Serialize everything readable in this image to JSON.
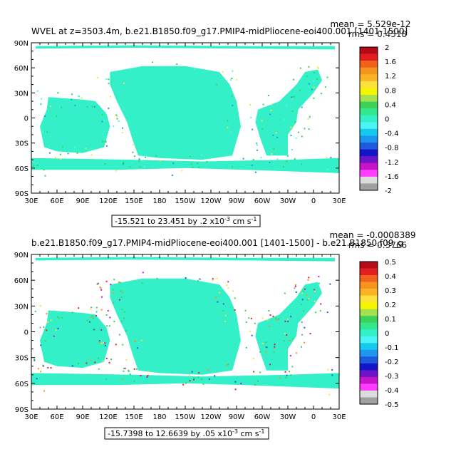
{
  "panels": [
    {
      "title": "WVEL at z=3503.4m, b.e21.B1850.f09_g17.PMIP4-midPliocene-eoi400.001 [1401-1500]",
      "stat_top": "mean = 5.529e-12",
      "stat_bottom": "rms = 0.4518",
      "range_text": "-15.521 to 23.451 by .2 x10",
      "range_exp": "-3",
      "range_unit": " cm s",
      "range_unit_exp": "-1",
      "colorbar_labels": [
        "2",
        "1.6",
        "1.2",
        "0.8",
        "0.4",
        "0",
        "-0.4",
        "-0.8",
        "-1.2",
        "-1.6",
        "-2"
      ],
      "colorbar_colors": [
        "#b40a19",
        "#e21e1e",
        "#f0621c",
        "#f7941d",
        "#fbb426",
        "#fde13c",
        "#f5f500",
        "#a5e04e",
        "#3cd25a",
        "#33e88c",
        "#33f0c8",
        "#4cf5f5",
        "#14c8f0",
        "#1e96f0",
        "#1e5adc",
        "#1414c8",
        "#6e14c8",
        "#c814c8",
        "#ff3cff",
        "#dcdcdc",
        "#a0a0a0"
      ]
    },
    {
      "title": "b.e21.B1850.f09_g17.PMIP4-midPliocene-eoi400.001 [1401-1500] - b.e21.B1850.f09_g",
      "stat_top": "mean = -0.0008389",
      "stat_bottom": "rms = 0.3766",
      "range_text": "-15.7398 to 12.6639 by .05 x10",
      "range_exp": "-3",
      "range_unit": " cm s",
      "range_unit_exp": "-1",
      "colorbar_labels": [
        "0.5",
        "0.4",
        "0.3",
        "0.2",
        "0.1",
        "0",
        "-0.1",
        "-0.2",
        "-0.3",
        "-0.4",
        "-0.5"
      ],
      "colorbar_colors": [
        "#b40a19",
        "#e21e1e",
        "#f0621c",
        "#f7941d",
        "#fbb426",
        "#fde13c",
        "#f5f500",
        "#a5e04e",
        "#3cd25a",
        "#33e88c",
        "#33f0c8",
        "#4cf5f5",
        "#14c8f0",
        "#1e96f0",
        "#1e5adc",
        "#1414c8",
        "#6e14c8",
        "#c814c8",
        "#ff3cff",
        "#dcdcdc",
        "#a0a0a0"
      ]
    }
  ],
  "axes": {
    "lat_labels": [
      "90N",
      "60N",
      "30N",
      "0",
      "30S",
      "60S",
      "90S"
    ],
    "lon_labels": [
      "30E",
      "60E",
      "90E",
      "120E",
      "150E",
      "180",
      "150W",
      "120W",
      "90W",
      "60W",
      "30W",
      "0",
      "30E"
    ]
  },
  "colors": {
    "field_main": "#33f0c8",
    "field_alt": "#3cd25a"
  }
}
